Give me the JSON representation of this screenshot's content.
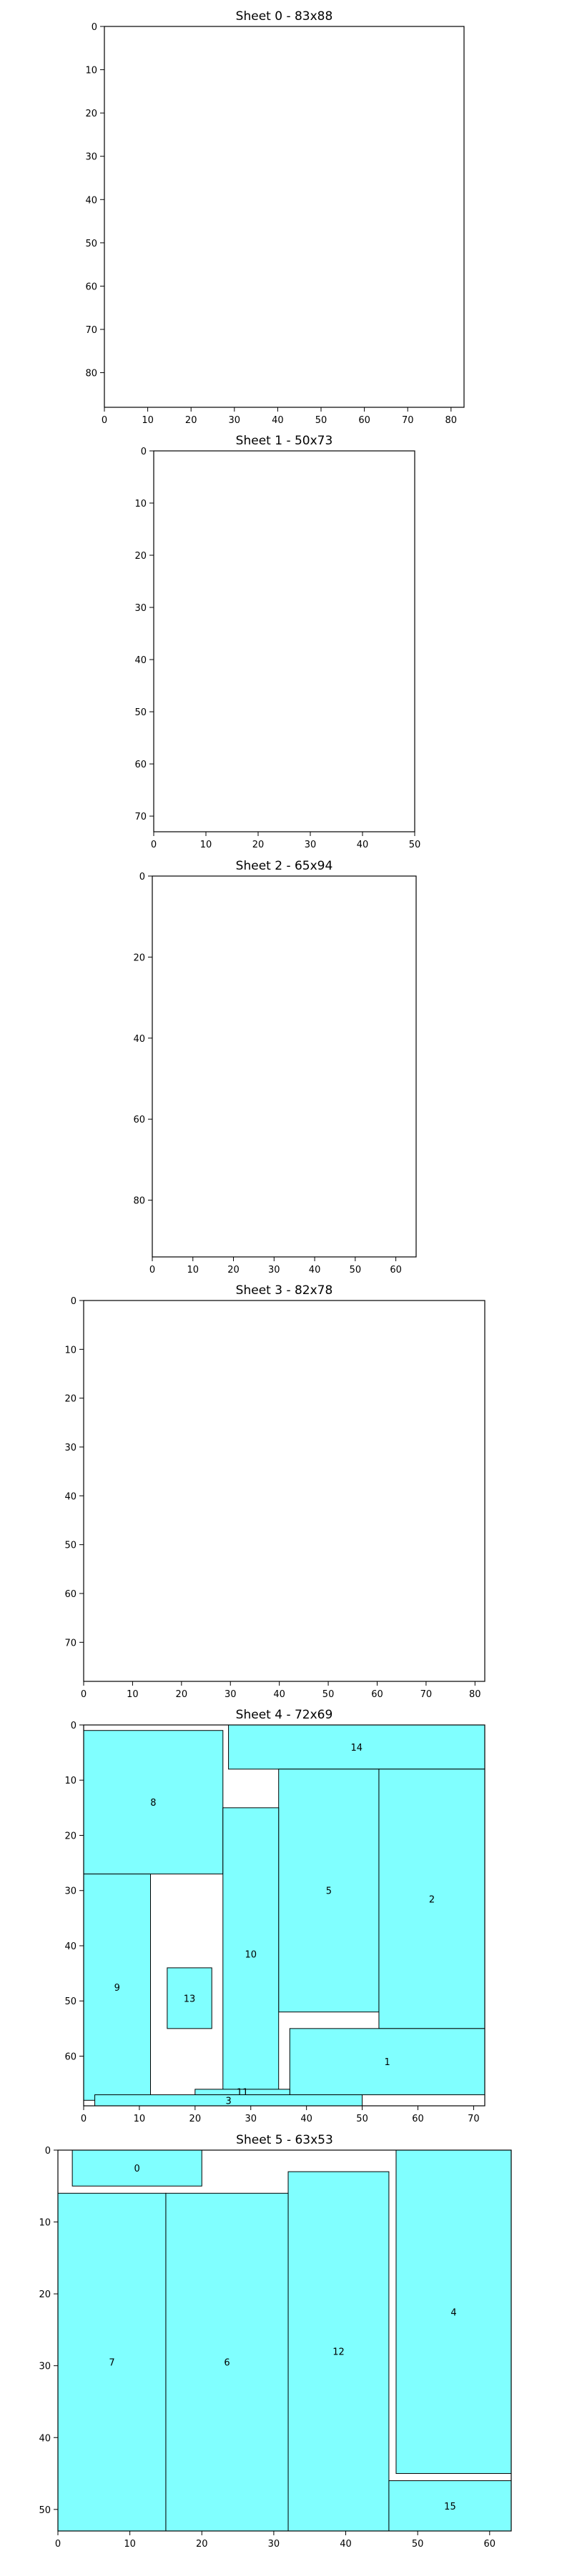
{
  "chart_data": [
    {
      "type": "rectangle-packing",
      "title": "Sheet 0 - 83x88",
      "xlim": [
        0,
        83
      ],
      "ylim": [
        88,
        0
      ],
      "xticks": [
        0,
        10,
        20,
        30,
        40,
        50,
        60,
        70,
        80
      ],
      "yticks": [
        0,
        10,
        20,
        30,
        40,
        50,
        60,
        70,
        80
      ],
      "rect_color": "#80ffff",
      "rects": []
    },
    {
      "type": "rectangle-packing",
      "title": "Sheet 1 - 50x73",
      "xlim": [
        0,
        50
      ],
      "ylim": [
        73,
        0
      ],
      "xticks": [
        0,
        10,
        20,
        30,
        40,
        50
      ],
      "yticks": [
        0,
        10,
        20,
        30,
        40,
        50,
        60,
        70
      ],
      "rect_color": "#80ffff",
      "rects": []
    },
    {
      "type": "rectangle-packing",
      "title": "Sheet 2 - 65x94",
      "xlim": [
        0,
        65
      ],
      "ylim": [
        94,
        0
      ],
      "xticks": [
        0,
        10,
        20,
        30,
        40,
        50,
        60
      ],
      "yticks": [
        0,
        20,
        40,
        60,
        80
      ],
      "rect_color": "#80ffff",
      "rects": []
    },
    {
      "type": "rectangle-packing",
      "title": "Sheet 3 - 82x78",
      "xlim": [
        0,
        82
      ],
      "ylim": [
        78,
        0
      ],
      "xticks": [
        0,
        10,
        20,
        30,
        40,
        50,
        60,
        70,
        80
      ],
      "yticks": [
        0,
        10,
        20,
        30,
        40,
        50,
        60,
        70
      ],
      "rect_color": "#80ffff",
      "rects": []
    },
    {
      "type": "rectangle-packing",
      "title": "Sheet 4 - 72x69",
      "xlim": [
        0,
        72
      ],
      "ylim": [
        69,
        0
      ],
      "xticks": [
        0,
        10,
        20,
        30,
        40,
        50,
        60,
        70
      ],
      "yticks": [
        0,
        10,
        20,
        30,
        40,
        50,
        60
      ],
      "rect_color": "#80ffff",
      "rects": [
        {
          "label": "14",
          "x": 26,
          "y": 0,
          "w": 46,
          "h": 8
        },
        {
          "label": "8",
          "x": 0,
          "y": 1,
          "w": 25,
          "h": 26
        },
        {
          "label": "5",
          "x": 35,
          "y": 8,
          "w": 18,
          "h": 44
        },
        {
          "label": "2",
          "x": 53,
          "y": 8,
          "w": 19,
          "h": 47
        },
        {
          "label": "10",
          "x": 25,
          "y": 15,
          "w": 10,
          "h": 53
        },
        {
          "label": "9",
          "x": 0,
          "y": 27,
          "w": 12,
          "h": 41
        },
        {
          "label": "13",
          "x": 15,
          "y": 44,
          "w": 8,
          "h": 11
        },
        {
          "label": "1",
          "x": 37,
          "y": 55,
          "w": 35,
          "h": 12
        },
        {
          "label": "11",
          "x": 20,
          "y": 66,
          "w": 17,
          "h": 1
        },
        {
          "label": "3",
          "x": 2,
          "y": 67,
          "w": 48,
          "h": 2
        }
      ]
    },
    {
      "type": "rectangle-packing",
      "title": "Sheet 5 - 63x53",
      "xlim": [
        0,
        63
      ],
      "ylim": [
        53,
        0
      ],
      "xticks": [
        0,
        10,
        20,
        30,
        40,
        50,
        60
      ],
      "yticks": [
        0,
        10,
        20,
        30,
        40,
        50
      ],
      "rect_color": "#80ffff",
      "rects": [
        {
          "label": "0",
          "x": 2,
          "y": 0,
          "w": 18,
          "h": 5
        },
        {
          "label": "4",
          "x": 47,
          "y": 0,
          "w": 16,
          "h": 45
        },
        {
          "label": "12",
          "x": 32,
          "y": 3,
          "w": 14,
          "h": 50
        },
        {
          "label": "7",
          "x": 0,
          "y": 6,
          "w": 15,
          "h": 47
        },
        {
          "label": "6",
          "x": 15,
          "y": 6,
          "w": 17,
          "h": 47
        },
        {
          "label": "15",
          "x": 46,
          "y": 46,
          "w": 17,
          "h": 7
        }
      ]
    }
  ]
}
